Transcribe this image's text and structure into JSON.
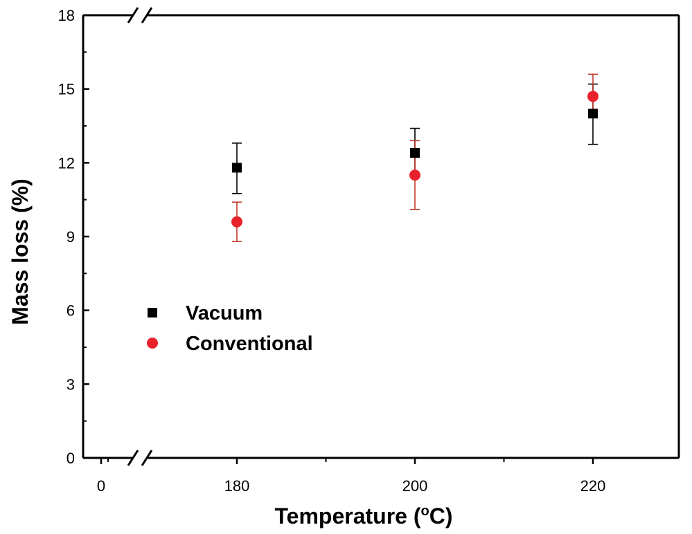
{
  "chart_data": {
    "type": "scatter",
    "title": "",
    "xlabel": "Temperature (",
    "xlabel_unit_super": "o",
    "xlabel_unit": "C)",
    "ylabel": "Mass loss (%)",
    "xlim": [
      -10,
      230
    ],
    "ylim": [
      0,
      18
    ],
    "x_axis_break": true,
    "x_ticks": [
      0,
      180,
      200,
      220
    ],
    "x_tick_labels": [
      "0",
      "180",
      "200",
      "220"
    ],
    "y_ticks": [
      0,
      3,
      6,
      9,
      12,
      15,
      18
    ],
    "y_tick_labels": [
      "0",
      "3",
      "6",
      "9",
      "12",
      "15",
      "18"
    ],
    "grid": false,
    "legend": "center-left",
    "series": [
      {
        "name": "Vacuum",
        "marker": "square",
        "color": "#000000",
        "x": [
          180,
          200,
          220
        ],
        "y": [
          11.8,
          12.4,
          14.0
        ],
        "error_low": [
          10.75,
          11.5,
          12.75
        ],
        "error_high": [
          12.8,
          13.4,
          15.2
        ]
      },
      {
        "name": "Conventional",
        "marker": "circle",
        "color": "#e8222b",
        "error_color": "#c0392b",
        "x": [
          180,
          200,
          220
        ],
        "y": [
          9.6,
          11.5,
          14.7
        ],
        "error_low": [
          8.8,
          10.1,
          14.0
        ],
        "error_high": [
          10.4,
          12.9,
          15.6
        ]
      }
    ]
  }
}
